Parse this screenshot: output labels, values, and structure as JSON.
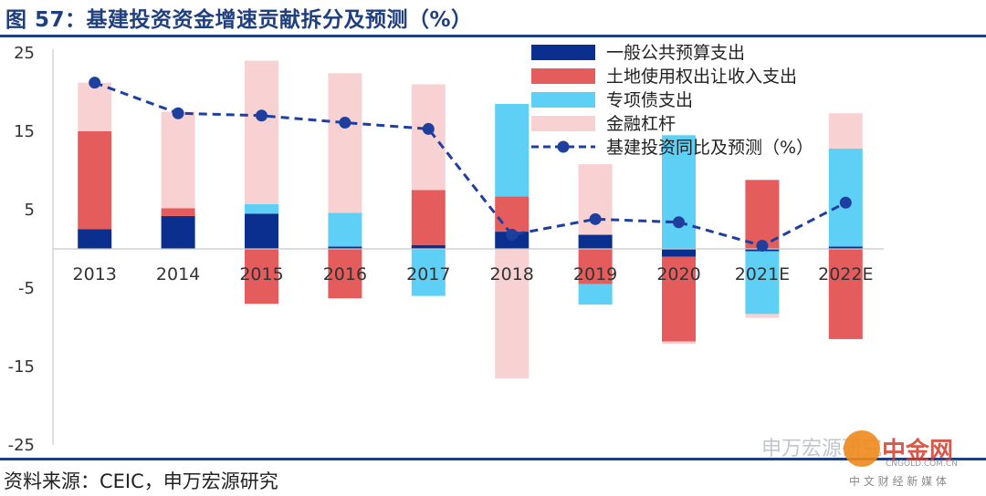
{
  "title": "图 57：基建投资资金增速贡献拆分及预测（%）",
  "source": "资料来源：CEIC，申万宏源研究",
  "watermark": {
    "text": "申万宏源研究",
    "logo_text": "中金网",
    "logo_sub": "CNGOLD.COM.CN",
    "logo_tagline": "中 文 财 经 新 媒 体"
  },
  "colors": {
    "general_budget": "#0a2f8f",
    "land_sales": "#e45c5c",
    "special_bonds": "#5fd0f5",
    "financial_leverage": "#f8d2d2",
    "line": "#1f3f9f",
    "frame": "#1f3f7f"
  },
  "chart_data": {
    "type": "bar",
    "stacked": true,
    "categories": [
      "2013",
      "2014",
      "2015",
      "2016",
      "2017",
      "2018",
      "2019",
      "2020",
      "2021E",
      "2022E"
    ],
    "y_ticks": [
      "25",
      "15",
      "5",
      "-5",
      "-15",
      "-25"
    ],
    "ylim": [
      -25,
      25
    ],
    "legend_position": "top-right",
    "series": [
      {
        "name": "一般公共预算支出",
        "kind": "bar",
        "color_key": "general_budget",
        "values": [
          2.5,
          4.2,
          4.5,
          0.3,
          0.5,
          2.2,
          1.8,
          -1.0,
          -0.3,
          0.3
        ]
      },
      {
        "name": "土地使用权出让收入支出",
        "kind": "bar",
        "color_key": "land_sales",
        "values": [
          12.5,
          1.0,
          -7.0,
          -6.3,
          7.0,
          4.5,
          -4.5,
          -10.8,
          8.8,
          -11.5
        ]
      },
      {
        "name": "专项债支出",
        "kind": "bar",
        "color_key": "special_bonds",
        "values": [
          0,
          0,
          1.2,
          4.3,
          -6.0,
          11.8,
          -2.6,
          14.5,
          -8.0,
          12.5
        ]
      },
      {
        "name": "金融杠杆",
        "kind": "bar",
        "color_key": "financial_leverage",
        "values": [
          6.2,
          12.3,
          18.3,
          17.8,
          13.5,
          -16.5,
          9.0,
          -0.3,
          -0.5,
          4.5
        ]
      },
      {
        "name": "基建投资同比及预测（%）",
        "kind": "line",
        "color_key": "line",
        "values": [
          21.2,
          17.3,
          17.0,
          16.1,
          15.3,
          1.8,
          3.8,
          3.4,
          0.4,
          5.9
        ]
      }
    ]
  }
}
